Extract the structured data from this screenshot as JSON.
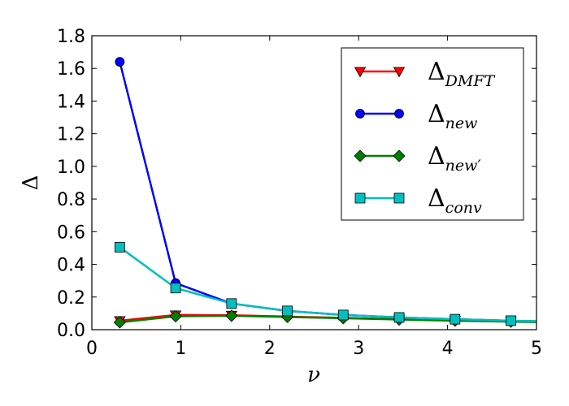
{
  "chart_data": {
    "type": "line",
    "xlabel": "ν",
    "ylabel": "Δ",
    "xlim": [
      0,
      5
    ],
    "ylim": [
      0,
      1.8
    ],
    "x_ticks": [
      "0",
      "1",
      "2",
      "3",
      "4",
      "5"
    ],
    "y_ticks": [
      "0.0",
      "0.2",
      "0.4",
      "0.6",
      "0.8",
      "1.0",
      "1.2",
      "1.4",
      "1.6",
      "1.8"
    ],
    "grid": false,
    "legend_position": "top-right",
    "x": [
      0.314,
      0.942,
      1.571,
      2.199,
      2.827,
      3.456,
      4.084,
      4.712,
      5.341
    ],
    "series": [
      {
        "name": "Δ",
        "subscript": "DMFT",
        "color": "#ff0000",
        "marker": "triangle-down",
        "values": [
          0.055,
          0.09,
          0.088,
          0.08,
          0.072,
          0.064,
          0.057,
          0.051,
          0.046
        ]
      },
      {
        "name": "Δ",
        "subscript": "new",
        "color": "#0000ff",
        "marker": "circle",
        "values": [
          1.64,
          0.285,
          0.16,
          0.115,
          0.09,
          0.075,
          0.064,
          0.055,
          0.048
        ]
      },
      {
        "name": "Δ",
        "subscript": "new′",
        "color": "#008000",
        "marker": "diamond",
        "values": [
          0.045,
          0.082,
          0.085,
          0.078,
          0.07,
          0.062,
          0.055,
          0.049,
          0.044
        ]
      },
      {
        "name": "Δ",
        "subscript": "conv",
        "color": "#00bfbf",
        "marker": "square",
        "values": [
          0.505,
          0.255,
          0.16,
          0.115,
          0.09,
          0.075,
          0.064,
          0.055,
          0.048
        ]
      }
    ]
  }
}
